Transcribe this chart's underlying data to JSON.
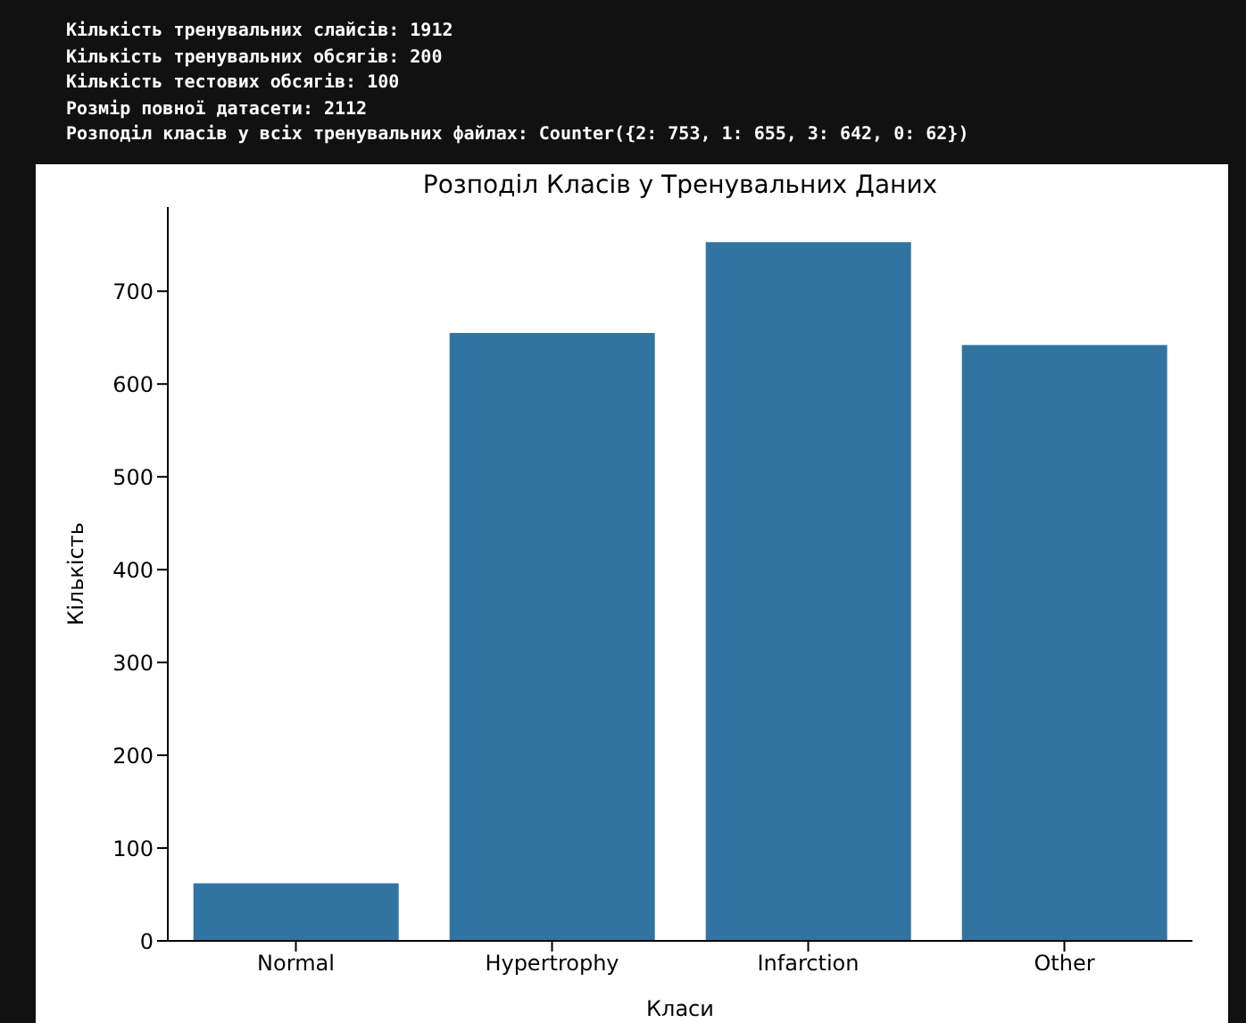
{
  "chart_data": {
    "type": "bar",
    "title": "Розподіл Класів у Тренувальних Даних",
    "xlabel": "Класи",
    "ylabel": "Кількість",
    "annotations": [
      "Кількість тренувальних слайсів: 1912",
      "Кількість тренувальних обсягів: 200",
      "Кількість тестових обсягів: 100",
      "Розмір повної датасети: 2112",
      "Розподіл класів у всіх тренувальних файлах: Counter({2: 753, 1: 655, 3: 642, 0: 62})"
    ],
    "categories": [
      "Normal",
      "Hypertrophy",
      "Infarction",
      "Other"
    ],
    "values": [
      62,
      655,
      753,
      642
    ],
    "color": "#3274a1",
    "ylim": [
      0,
      790.65
    ],
    "yticks": [
      0,
      100,
      200,
      300,
      400,
      500,
      600,
      700
    ],
    "grid": false
  }
}
